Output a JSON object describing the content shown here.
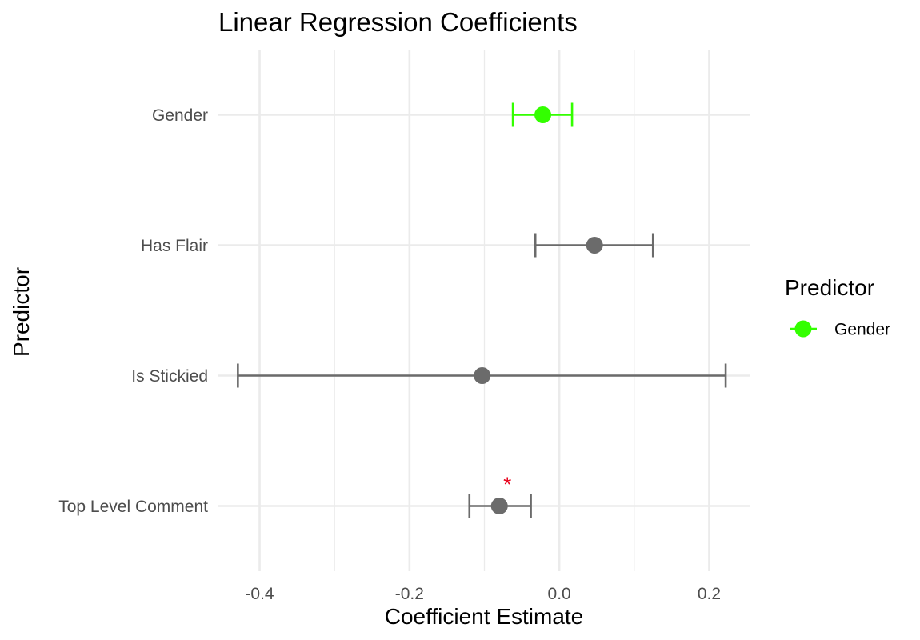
{
  "chart_data": {
    "type": "scatter",
    "title": "Linear Regression Coefficients",
    "xlabel": "Coefficient Estimate",
    "ylabel": "Predictor",
    "xlim": [
      -0.455,
      0.255
    ],
    "x_ticks": [
      -0.4,
      -0.2,
      0.0,
      0.2
    ],
    "x_tick_labels": [
      "-0.4",
      "-0.2",
      "0.0",
      "0.2"
    ],
    "x_minor_ticks": [
      -0.3,
      -0.1,
      0.1
    ],
    "grid": true,
    "categories": [
      "Gender",
      "Has Flair",
      "Is Stickied",
      "Top Level Comment"
    ],
    "points": [
      {
        "predictor": "Gender",
        "estimate": -0.022,
        "ci_low": -0.062,
        "ci_high": 0.017,
        "color": "#33ff00",
        "significant": false
      },
      {
        "predictor": "Has Flair",
        "estimate": 0.047,
        "ci_low": -0.032,
        "ci_high": 0.125,
        "color": "#6b6b6b",
        "significant": false
      },
      {
        "predictor": "Is Stickied",
        "estimate": -0.103,
        "ci_low": -0.429,
        "ci_high": 0.222,
        "color": "#6b6b6b",
        "significant": false
      },
      {
        "predictor": "Top Level Comment",
        "estimate": -0.08,
        "ci_low": -0.12,
        "ci_high": -0.038,
        "color": "#6b6b6b",
        "significant": true
      }
    ],
    "significance_marker": "*",
    "significance_color": "#e8001a",
    "legend": {
      "title": "Predictor",
      "position": "right",
      "entries": [
        {
          "label": "Gender",
          "color": "#33ff00"
        }
      ]
    }
  }
}
